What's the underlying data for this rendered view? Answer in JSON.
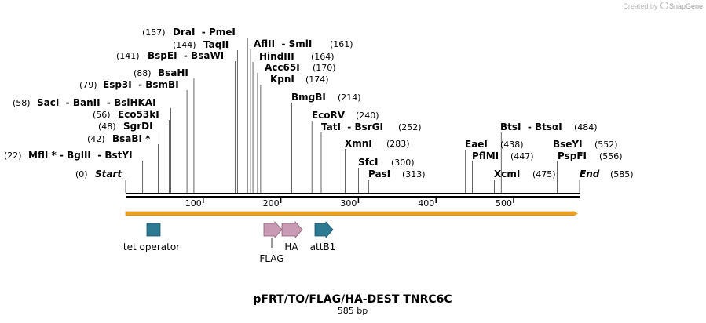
{
  "watermark": {
    "prefix": "Created by",
    "brand": "SnapGene"
  },
  "map": {
    "title": "pFRT/TO/FLAG/HA-DEST TNRC6C",
    "length_label": "585 bp",
    "length": 585,
    "ticks": [
      "100",
      "200",
      "300",
      "400",
      "500"
    ]
  },
  "sites": [
    {
      "pos": 0,
      "text": "Start",
      "pos_label": "(0)",
      "italic": true
    },
    {
      "pos": 22,
      "text": "MflI * - BglII  - BstYI",
      "pos_label": "(22)"
    },
    {
      "pos": 42,
      "text": "BsaBI *",
      "pos_label": "(42)"
    },
    {
      "pos": 48,
      "text": "SgrDI",
      "pos_label": "(48)"
    },
    {
      "pos": 56,
      "text": "Eco53kI",
      "pos_label": "(56)"
    },
    {
      "pos": 58,
      "text": "SacI  - BanII  - BsiHKAI",
      "pos_label": "(58)"
    },
    {
      "pos": 79,
      "text": "Esp3I  - BsmBI",
      "pos_label": "(79)"
    },
    {
      "pos": 88,
      "text": "BsaHI",
      "pos_label": "(88)"
    },
    {
      "pos": 141,
      "text": "BspEI  - BsaWI",
      "pos_label": "(141)"
    },
    {
      "pos": 144,
      "text": "TaqII",
      "pos_label": "(144)"
    },
    {
      "pos": 157,
      "text": "DraI  - PmeI",
      "pos_label": "(157)"
    },
    {
      "pos": 161,
      "text": "AflII  - SmlI",
      "pos_label": "(161)"
    },
    {
      "pos": 164,
      "text": "HindIII",
      "pos_label": "(164)"
    },
    {
      "pos": 170,
      "text": "Acc65I",
      "pos_label": "(170)"
    },
    {
      "pos": 174,
      "text": "KpnI",
      "pos_label": "(174)"
    },
    {
      "pos": 214,
      "text": "BmgBI",
      "pos_label": "(214)"
    },
    {
      "pos": 240,
      "text": "EcoRV",
      "pos_label": "(240)"
    },
    {
      "pos": 252,
      "text": "TatI  - BsrGI",
      "pos_label": "(252)"
    },
    {
      "pos": 283,
      "text": "XmnI",
      "pos_label": "(283)"
    },
    {
      "pos": 300,
      "text": "SfcI",
      "pos_label": "(300)"
    },
    {
      "pos": 313,
      "text": "PasI",
      "pos_label": "(313)"
    },
    {
      "pos": 438,
      "text": "EaeI",
      "pos_label": "(438)"
    },
    {
      "pos": 447,
      "text": "PflMI",
      "pos_label": "(447)"
    },
    {
      "pos": 475,
      "text": "XcmI",
      "pos_label": "(475)"
    },
    {
      "pos": 484,
      "text": "BtsI  - BtsαI",
      "pos_label": "(484)"
    },
    {
      "pos": 552,
      "text": "BseYI",
      "pos_label": "(552)"
    },
    {
      "pos": 556,
      "text": "PspFI",
      "pos_label": "(556)"
    },
    {
      "pos": 585,
      "text": "End",
      "pos_label": "(585)",
      "italic": true
    }
  ],
  "features": [
    {
      "name": "tet operator",
      "type": "box",
      "color": "#2e7a93"
    },
    {
      "name": "FLAG",
      "type": "arrow",
      "color": "#c99ab3"
    },
    {
      "name": "HA",
      "type": "arrow",
      "color": "#c99ab3"
    },
    {
      "name": "attB1",
      "type": "arrow",
      "color": "#2e7a93"
    }
  ],
  "orf_color": "#e8a020"
}
